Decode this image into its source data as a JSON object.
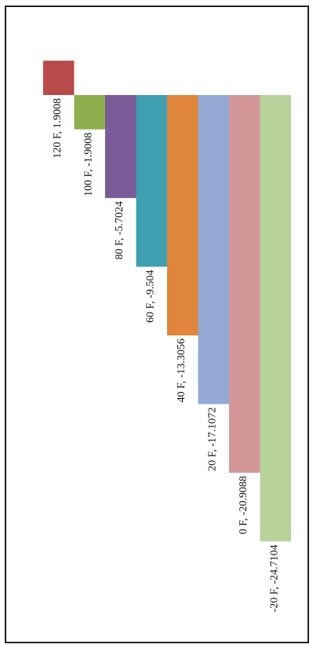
{
  "chart_data": {
    "type": "bar",
    "orientation": "vertical, rotated 90 degrees clockwise",
    "title": "",
    "xlabel": "",
    "ylabel": "",
    "categories": [
      "120 F",
      "100 F",
      "80 F",
      "60 F",
      "40 F",
      "20 F",
      "0 F",
      "-20 F"
    ],
    "values": [
      1.9008,
      -1.9008,
      -5.7024,
      -9.504,
      -13.3056,
      -17.1072,
      -20.9088,
      -24.7104
    ],
    "data_labels": [
      "120 F, 1.9008",
      "100 F, -1.9008",
      "80 F, -5.7024",
      "60 F, -9.504",
      "40 F, -13.3056",
      "20 F, -17.1072",
      "0 F, -20.9088",
      "-20 F, -24.7104"
    ],
    "colors": [
      "#b84a4a",
      "#8fae4e",
      "#7a5a97",
      "#3f9fb1",
      "#e0853c",
      "#93a9d3",
      "#d39798",
      "#b8d29b"
    ],
    "axes_visible": false,
    "grid": false,
    "legend": "none"
  }
}
